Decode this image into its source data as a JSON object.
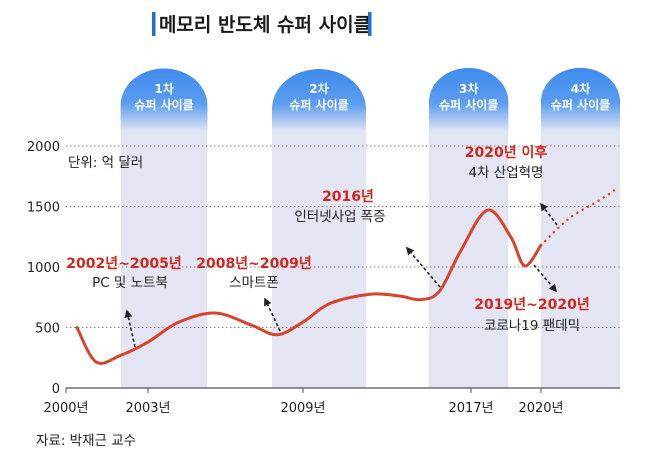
{
  "title": "메모리 반도체 슈퍼 사이클",
  "colors": {
    "accent_bar": "#1f6fd6",
    "band_top": "#4a93ee",
    "band": "#e4e5f3",
    "line": "#d8432c",
    "highlight_text": "#d0281e"
  },
  "chart_data": {
    "type": "line",
    "title": "메모리 반도체 슈퍼 사이클",
    "unit_label": "단위: 억 달러",
    "ylim": [
      0,
      2000
    ],
    "y_ticks": [
      0,
      500,
      1000,
      1500,
      2000
    ],
    "x_ticks": [
      {
        "year": 2000,
        "label": "2000년"
      },
      {
        "year": 2003,
        "label": "2003년"
      },
      {
        "year": 2009,
        "label": "2009년"
      },
      {
        "year": 2017,
        "label": "2017년"
      },
      {
        "year": 2020,
        "label": "2020년"
      }
    ],
    "grid": "horizontal dotted",
    "series": [
      {
        "style": "solid",
        "points": [
          [
            2000.4,
            500
          ],
          [
            2001.1,
            215
          ],
          [
            2002.0,
            270
          ],
          [
            2003.0,
            380
          ],
          [
            2004.2,
            545
          ],
          [
            2005.6,
            620
          ],
          [
            2007.0,
            520
          ],
          [
            2008.0,
            440
          ],
          [
            2009.0,
            545
          ],
          [
            2010.3,
            700
          ],
          [
            2012.2,
            775
          ],
          [
            2013.6,
            760
          ],
          [
            2014.6,
            730
          ],
          [
            2015.5,
            800
          ],
          [
            2016.5,
            1130
          ],
          [
            2017.7,
            1470
          ],
          [
            2018.7,
            1250
          ],
          [
            2019.3,
            1010
          ],
          [
            2020.0,
            1180
          ]
        ]
      },
      {
        "style": "dotted",
        "points": [
          [
            2020.0,
            1180
          ],
          [
            2021.2,
            1400
          ],
          [
            2022.5,
            1550
          ],
          [
            2023.2,
            1640
          ]
        ]
      }
    ],
    "cycles": [
      {
        "line1": "1차",
        "line2": "슈퍼 사이클",
        "from": 2002.0,
        "to": 2005.3
      },
      {
        "line1": "2차",
        "line2": "슈퍼 사이클",
        "from": 2007.8,
        "to": 2012.0
      },
      {
        "line1": "3차",
        "line2": "슈퍼 사이클",
        "from": 2015.0,
        "to": 2018.6
      },
      {
        "line1": "4차",
        "line2": "슈퍼 사이클",
        "from": 2020.0,
        "to": 2023.4
      }
    ],
    "annotations": [
      {
        "period": "2002년~2005년",
        "event": "PC 및 노트북"
      },
      {
        "period": "2008년~2009년",
        "event": "스마트폰"
      },
      {
        "period": "2016년",
        "event": "인터넷사업 폭증"
      },
      {
        "period": "2020년 이후",
        "event": "4차 산업혁명"
      },
      {
        "period": "2019년~2020년",
        "event": "코로나19 팬데믹"
      }
    ]
  },
  "source": "자료: 박재근 교수"
}
